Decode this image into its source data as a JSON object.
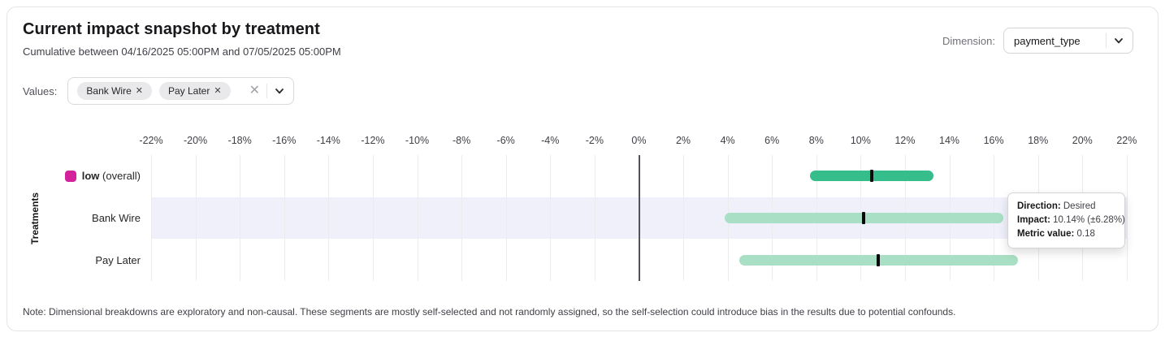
{
  "header": {
    "title": "Current impact snapshot by treatment",
    "subtitle": "Cumulative between 04/16/2025 05:00PM and 07/05/2025 05:00PM",
    "dimension_label": "Dimension:",
    "dimension_value": "payment_type"
  },
  "filters": {
    "values_label": "Values:",
    "chips": [
      {
        "label": "Bank Wire",
        "remove_icon": "✕"
      },
      {
        "label": "Pay Later",
        "remove_icon": "✕"
      }
    ],
    "clear_icon": "✕"
  },
  "chart_data": {
    "type": "bar",
    "subtype": "horizontal_confidence_intervals",
    "ylabel": "Treatments",
    "xlabel": "",
    "axis": {
      "unit": "%",
      "min": -22,
      "max": 22,
      "step": 2,
      "ticks": [
        -22,
        -20,
        -18,
        -16,
        -14,
        -12,
        -10,
        -8,
        -6,
        -4,
        -2,
        0,
        2,
        4,
        6,
        8,
        10,
        12,
        14,
        16,
        18,
        20,
        22
      ]
    },
    "grid": true,
    "rows": [
      {
        "name": "low",
        "suffix": " (overall)",
        "bold": true,
        "swatch_color": "#d4219c",
        "impact_pct": 10.5,
        "moe_pct": 2.8,
        "bar_color": "#35bd8c",
        "highlighted": false
      },
      {
        "name": "Bank Wire",
        "suffix": "",
        "bold": false,
        "swatch_color": null,
        "impact_pct": 10.14,
        "moe_pct": 6.28,
        "bar_color": "#a9dfc4",
        "highlighted": true
      },
      {
        "name": "Pay Later",
        "suffix": "",
        "bold": false,
        "swatch_color": null,
        "impact_pct": 10.81,
        "moe_pct": 6.28,
        "bar_color": "#a9dfc4",
        "highlighted": false
      }
    ],
    "marker_color": "#09090b",
    "highlight_color": "#f0f0fb"
  },
  "tooltip": {
    "direction_label": "Direction:",
    "direction_value": "Desired",
    "impact_label": "Impact:",
    "impact_value": "10.14% (±6.28%)",
    "metric_label": "Metric value:",
    "metric_value": "0.18"
  },
  "note": "Note: Dimensional breakdowns are exploratory and non-causal. These segments are mostly self-selected and not randomly assigned, so the self-selection could introduce bias in the results due to potential confounds."
}
